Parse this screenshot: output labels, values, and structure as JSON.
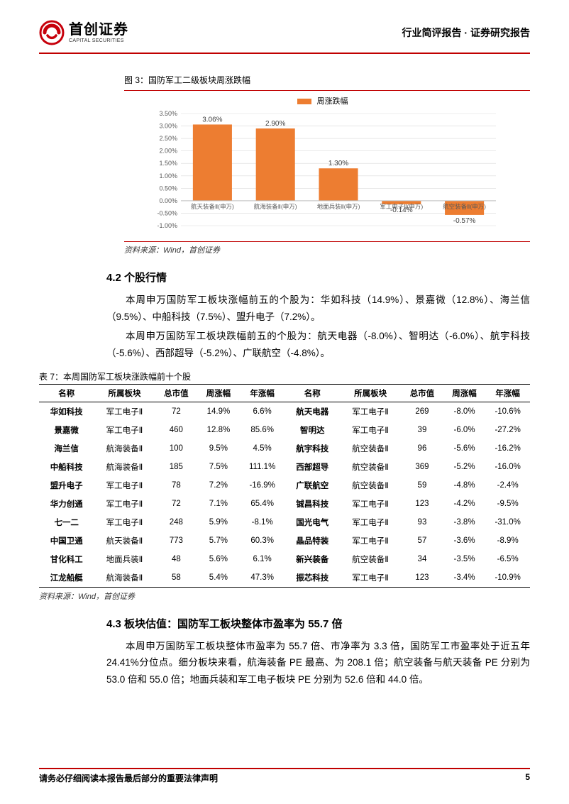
{
  "header": {
    "logo_cn": "首创证券",
    "logo_en": "CAPITAL SECURITIES",
    "right": "行业简评报告 · 证券研究报告"
  },
  "logo_color": "#c7000b",
  "fig3": {
    "caption": "图 3：国防军工二级板块周涨跌幅",
    "legend_label": "周涨跌幅",
    "type": "bar",
    "color": "#ed7d31",
    "grid_color": "#d9d9d9",
    "axis_color": "#bfbfbf",
    "label_fontsize": 9,
    "categories": [
      "航天装备Ⅱ(申万)",
      "航海装备Ⅱ(申万)",
      "地面兵装Ⅱ(申万)",
      "军工电子Ⅱ(申万)",
      "航空装备Ⅱ(申万)"
    ],
    "values": [
      3.06,
      2.9,
      1.3,
      -0.14,
      -0.57
    ],
    "value_labels": [
      "3.06%",
      "2.90%",
      "1.30%",
      "-0.14%",
      "-0.57%"
    ],
    "ymin": -1.0,
    "ymax": 3.5,
    "ystep": 0.5,
    "yticks": [
      "-1.00%",
      "-0.50%",
      "0.00%",
      "0.50%",
      "1.00%",
      "1.50%",
      "2.00%",
      "2.50%",
      "3.00%",
      "3.50%"
    ]
  },
  "source_text": "资料来源：Wind，首创证券",
  "sec42": {
    "title": "4.2 个股行情",
    "p1": "本周申万国防军工板块涨幅前五的个股为：华如科技（14.9%）、景嘉微（12.8%）、海兰信（9.5%）、中船科技（7.5%）、盟升电子（7.2%）。",
    "p2": "本周申万国防军工板块跌幅前五的个股为：航天电器（-8.0%）、智明达（-6.0%）、航宇科技（-5.6%）、西部超导（-5.2%）、广联航空（-4.8%）。"
  },
  "table7": {
    "caption": "表 7：本周国防军工板块涨跌幅前十个股",
    "columns": [
      "名称",
      "所属板块",
      "总市值",
      "周涨幅",
      "年涨幅",
      "名称",
      "所属板块",
      "总市值",
      "周涨幅",
      "年涨幅"
    ],
    "rows": [
      [
        "华如科技",
        "军工电子Ⅱ",
        "72",
        "14.9%",
        "6.6%",
        "航天电器",
        "军工电子Ⅱ",
        "269",
        "-8.0%",
        "-10.6%"
      ],
      [
        "景嘉微",
        "军工电子Ⅱ",
        "460",
        "12.8%",
        "85.6%",
        "智明达",
        "军工电子Ⅱ",
        "39",
        "-6.0%",
        "-27.2%"
      ],
      [
        "海兰信",
        "航海装备Ⅱ",
        "100",
        "9.5%",
        "4.5%",
        "航宇科技",
        "航空装备Ⅱ",
        "96",
        "-5.6%",
        "-16.2%"
      ],
      [
        "中船科技",
        "航海装备Ⅱ",
        "185",
        "7.5%",
        "111.1%",
        "西部超导",
        "航空装备Ⅱ",
        "369",
        "-5.2%",
        "-16.0%"
      ],
      [
        "盟升电子",
        "军工电子Ⅱ",
        "78",
        "7.2%",
        "-16.9%",
        "广联航空",
        "航空装备Ⅱ",
        "59",
        "-4.8%",
        "-2.4%"
      ],
      [
        "华力创通",
        "军工电子Ⅱ",
        "72",
        "7.1%",
        "65.4%",
        "铖昌科技",
        "军工电子Ⅱ",
        "123",
        "-4.2%",
        "-9.5%"
      ],
      [
        "七一二",
        "军工电子Ⅱ",
        "248",
        "5.9%",
        "-8.1%",
        "国光电气",
        "军工电子Ⅱ",
        "93",
        "-3.8%",
        "-31.0%"
      ],
      [
        "中国卫通",
        "航天装备Ⅱ",
        "773",
        "5.7%",
        "60.3%",
        "晶品特装",
        "军工电子Ⅱ",
        "57",
        "-3.6%",
        "-8.9%"
      ],
      [
        "甘化科工",
        "地面兵装Ⅱ",
        "48",
        "5.6%",
        "6.1%",
        "新兴装备",
        "航空装备Ⅱ",
        "34",
        "-3.5%",
        "-6.5%"
      ],
      [
        "江龙船艇",
        "航海装备Ⅱ",
        "58",
        "5.4%",
        "47.3%",
        "振芯科技",
        "军工电子Ⅱ",
        "123",
        "-3.4%",
        "-10.9%"
      ]
    ]
  },
  "sec43": {
    "title": "4.3 板块估值：国防军工板块整体市盈率为 55.7 倍",
    "p1": "本周申万国防军工板块整体市盈率为 55.7 倍、市净率为 3.3 倍，国防军工市盈率处于近五年 24.41%分位点。细分板块来看，航海装备 PE 最高、为 208.1 倍；航空装备与航天装备 PE 分别为 53.0 倍和 55.0 倍；地面兵装和军工电子板块 PE 分别为 52.6 倍和 44.0 倍。"
  },
  "footer": {
    "text": "请务必仔细阅读本报告最后部分的重要法律声明",
    "page": "5"
  }
}
